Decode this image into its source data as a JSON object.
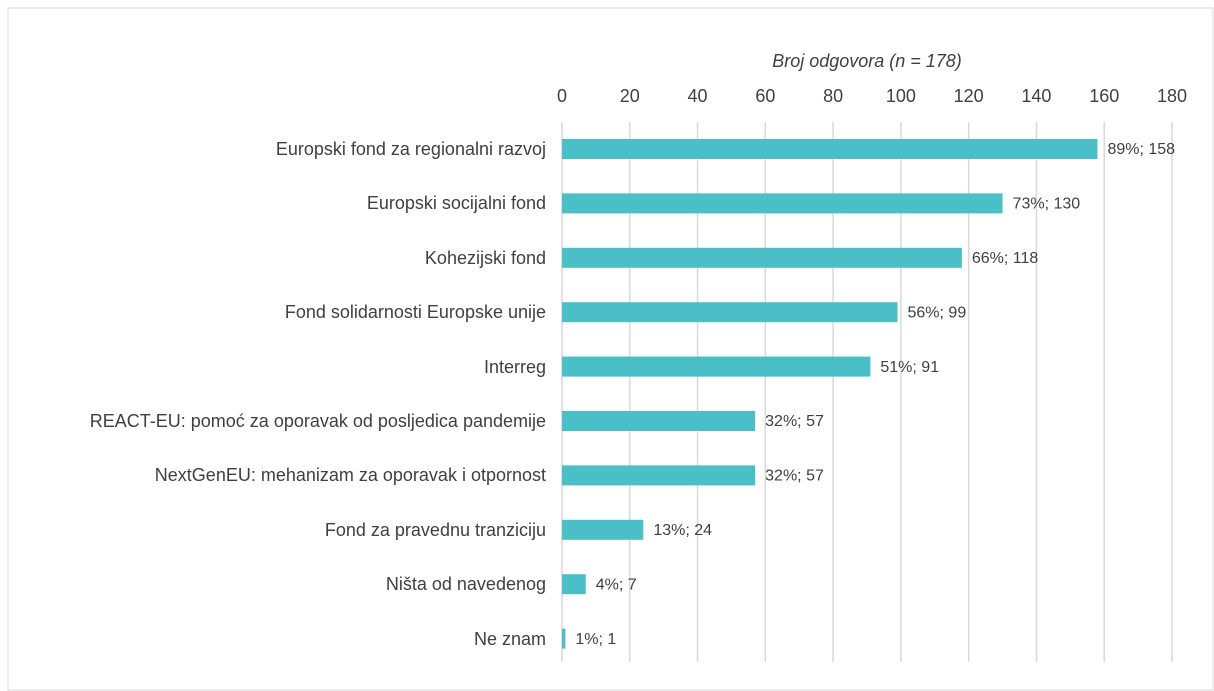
{
  "chart_data": {
    "type": "bar",
    "orientation": "horizontal",
    "title": "Broj odgovora (n = 178)",
    "categories": [
      "Europski fond za regionalni razvoj",
      "Europski socijalni fond",
      "Kohezijski fond",
      "Fond solidarnosti Europske unije",
      "Interreg",
      "REACT-EU: pomoć za oporavak od posljedica pandemije",
      "NextGenEU: mehanizam za oporavak i otpornost",
      "Fond za pravednu tranziciju",
      "Ništa od navedenog",
      "Ne znam"
    ],
    "values": [
      158,
      130,
      118,
      99,
      91,
      57,
      57,
      24,
      7,
      1
    ],
    "value_labels": [
      "89%; 158",
      "73%; 130",
      "66%; 118",
      "56%; 99",
      "51%; 91",
      "32%; 57",
      "32%; 57",
      "13%; 24",
      "4%; 7",
      "1%; 1"
    ],
    "color": "#4bbfc8",
    "xlim": [
      0,
      180
    ],
    "xticks": [
      0,
      20,
      40,
      60,
      80,
      100,
      120,
      140,
      160,
      180
    ],
    "grid": true
  }
}
